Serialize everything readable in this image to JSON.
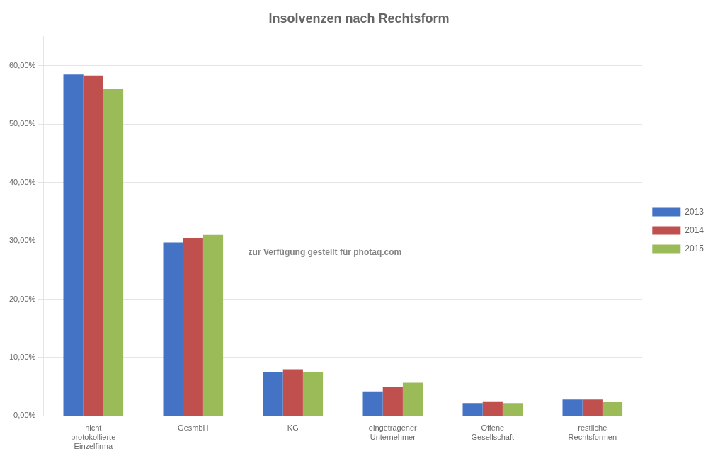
{
  "chart_data": {
    "type": "bar",
    "title": "Insolvenzen nach Rechtsform",
    "categories": [
      "nicht\nprotokollierte\nEinzelfirma",
      "GesmbH",
      "KG",
      "eingetragener\nUnternehmer",
      "Offene\nGesellschaft",
      "restliche\nRechtsformen"
    ],
    "series": [
      {
        "name": "2013",
        "color": "#4472C4",
        "values": [
          0.585,
          0.297,
          0.075,
          0.042,
          0.022,
          0.028
        ]
      },
      {
        "name": "2014",
        "color": "#C0504D",
        "values": [
          0.583,
          0.305,
          0.08,
          0.05,
          0.025,
          0.028
        ]
      },
      {
        "name": "2015",
        "color": "#9BBB59",
        "values": [
          0.561,
          0.31,
          0.075,
          0.057,
          0.022,
          0.024
        ]
      }
    ],
    "ylim": [
      0,
      0.65
    ],
    "yticks": [
      {
        "value": 0.0,
        "label": "0,00%"
      },
      {
        "value": 0.1,
        "label": "10,00%"
      },
      {
        "value": 0.2,
        "label": "20,00%"
      },
      {
        "value": 0.3,
        "label": "30,00%"
      },
      {
        "value": 0.4,
        "label": "40,00%"
      },
      {
        "value": 0.5,
        "label": "50,00%"
      },
      {
        "value": 0.6,
        "label": "60,00%"
      }
    ],
    "grid": true,
    "legend": "right",
    "annotations": [
      {
        "text": "zur Verfügung gestellt für photaq.com"
      }
    ]
  }
}
